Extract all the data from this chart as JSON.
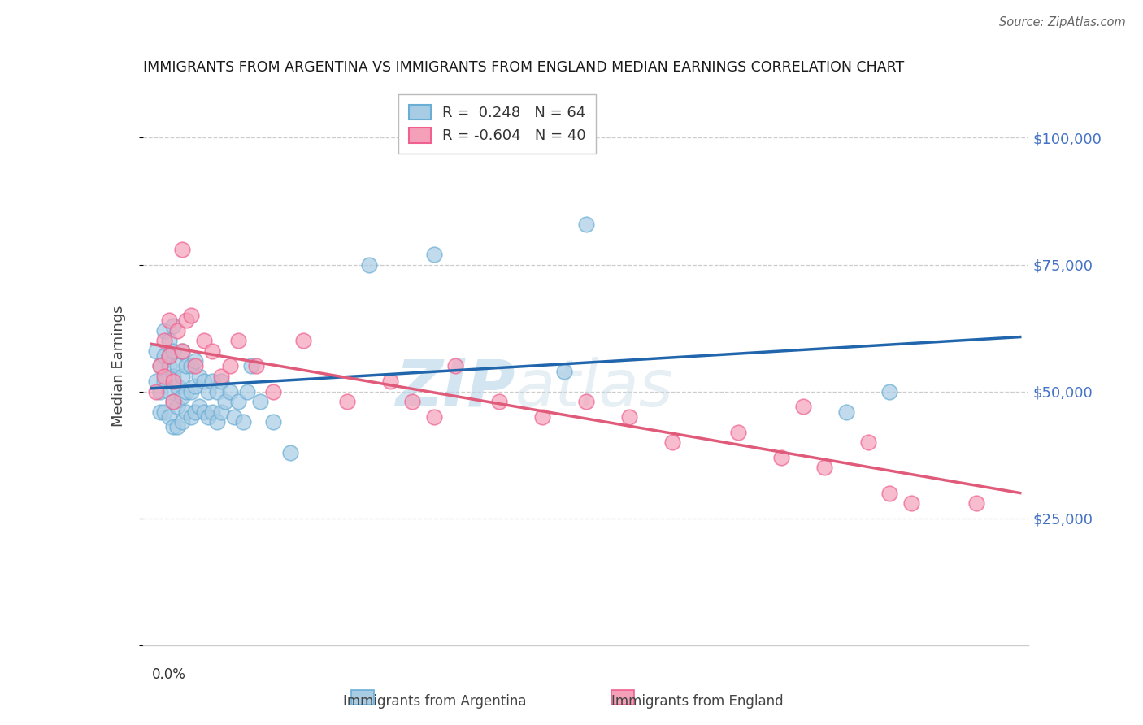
{
  "title": "IMMIGRANTS FROM ARGENTINA VS IMMIGRANTS FROM ENGLAND MEDIAN EARNINGS CORRELATION CHART",
  "source": "Source: ZipAtlas.com",
  "ylabel": "Median Earnings",
  "yticks": [
    0,
    25000,
    50000,
    75000,
    100000
  ],
  "ytick_labels": [
    "",
    "$25,000",
    "$50,000",
    "$75,000",
    "$100,000"
  ],
  "ymin": 0,
  "ymax": 110000,
  "xmin": 0.0,
  "xmax": 0.2,
  "watermark_zip": "ZIP",
  "watermark_atlas": "atlas",
  "legend_line1": "R =  0.248   N = 64",
  "legend_line2": "R = -0.604   N = 40",
  "argentina_color": "#a8cce4",
  "england_color": "#f4a0b8",
  "argentina_edge": "#6aaed6",
  "england_edge": "#f06090",
  "argentina_line_color": "#2166ac",
  "england_line_color": "#e05a7a",
  "argentina_x": [
    0.001,
    0.001,
    0.002,
    0.002,
    0.002,
    0.003,
    0.003,
    0.003,
    0.003,
    0.004,
    0.004,
    0.004,
    0.004,
    0.004,
    0.005,
    0.005,
    0.005,
    0.005,
    0.005,
    0.006,
    0.006,
    0.006,
    0.006,
    0.007,
    0.007,
    0.007,
    0.007,
    0.008,
    0.008,
    0.008,
    0.009,
    0.009,
    0.009,
    0.01,
    0.01,
    0.01,
    0.011,
    0.011,
    0.012,
    0.012,
    0.013,
    0.013,
    0.014,
    0.014,
    0.015,
    0.015,
    0.016,
    0.016,
    0.017,
    0.018,
    0.019,
    0.02,
    0.021,
    0.022,
    0.023,
    0.025,
    0.028,
    0.032,
    0.05,
    0.065,
    0.095,
    0.1,
    0.16,
    0.17
  ],
  "argentina_y": [
    58000,
    52000,
    55000,
    50000,
    46000,
    62000,
    57000,
    52000,
    46000,
    60000,
    55000,
    50000,
    45000,
    57000,
    63000,
    58000,
    53000,
    48000,
    43000,
    55000,
    51000,
    47000,
    43000,
    58000,
    53000,
    49000,
    44000,
    55000,
    50000,
    46000,
    55000,
    50000,
    45000,
    56000,
    51000,
    46000,
    53000,
    47000,
    52000,
    46000,
    50000,
    45000,
    52000,
    46000,
    50000,
    44000,
    52000,
    46000,
    48000,
    50000,
    45000,
    48000,
    44000,
    50000,
    55000,
    48000,
    44000,
    38000,
    75000,
    77000,
    54000,
    83000,
    46000,
    50000
  ],
  "england_x": [
    0.001,
    0.002,
    0.003,
    0.003,
    0.004,
    0.004,
    0.005,
    0.005,
    0.006,
    0.007,
    0.007,
    0.008,
    0.009,
    0.01,
    0.012,
    0.014,
    0.016,
    0.018,
    0.02,
    0.024,
    0.028,
    0.035,
    0.045,
    0.055,
    0.06,
    0.065,
    0.07,
    0.08,
    0.09,
    0.1,
    0.11,
    0.12,
    0.135,
    0.145,
    0.15,
    0.155,
    0.165,
    0.17,
    0.175,
    0.19
  ],
  "england_y": [
    50000,
    55000,
    60000,
    53000,
    57000,
    64000,
    52000,
    48000,
    62000,
    78000,
    58000,
    64000,
    65000,
    55000,
    60000,
    58000,
    53000,
    55000,
    60000,
    55000,
    50000,
    60000,
    48000,
    52000,
    48000,
    45000,
    55000,
    48000,
    45000,
    48000,
    45000,
    40000,
    42000,
    37000,
    47000,
    35000,
    40000,
    30000,
    28000,
    28000
  ]
}
